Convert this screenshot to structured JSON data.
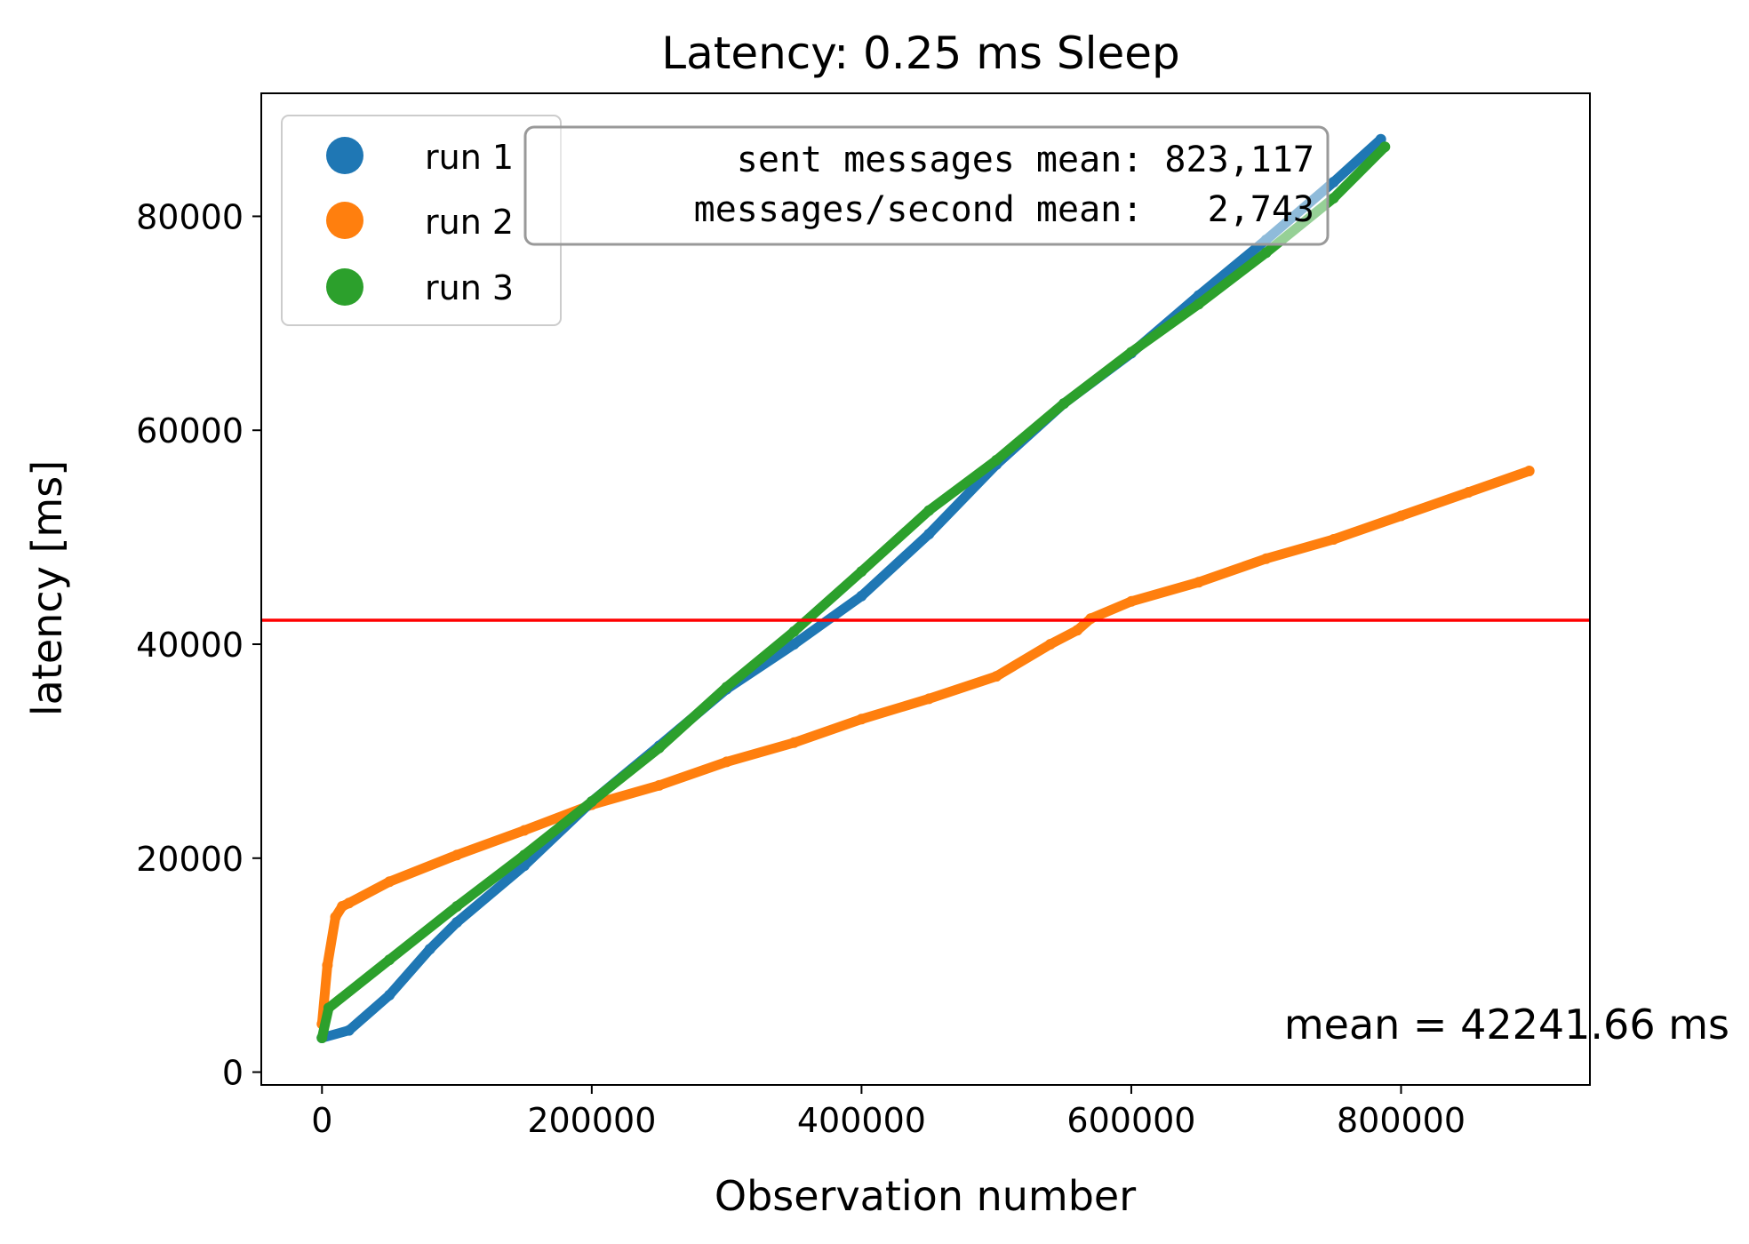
{
  "chart_data": {
    "type": "scatter",
    "title": "Latency: 0.25 ms Sleep",
    "xlabel": "Observation number",
    "ylabel": "latency [ms]",
    "xlim": [
      -45000,
      940000
    ],
    "ylim": [
      -1200,
      91500
    ],
    "x_ticks": [
      0,
      200000,
      400000,
      600000,
      800000
    ],
    "y_ticks": [
      0,
      20000,
      40000,
      60000,
      80000
    ],
    "x_tick_labels": [
      "0",
      "200000",
      "400000",
      "600000",
      "800000"
    ],
    "y_tick_labels": [
      "0",
      "20000",
      "40000",
      "60000",
      "80000"
    ],
    "grid": false,
    "legend_position": "upper-left",
    "series": [
      {
        "name": "run 1",
        "color": "#1f77b4",
        "x": [
          0,
          20000,
          50000,
          80000,
          100000,
          150000,
          200000,
          250000,
          300000,
          350000,
          400000,
          450000,
          500000,
          550000,
          600000,
          650000,
          700000,
          750000,
          785000
        ],
        "y": [
          3200,
          3900,
          7200,
          11500,
          14000,
          19300,
          25300,
          30500,
          35800,
          40000,
          44500,
          50300,
          56800,
          62500,
          67200,
          72600,
          77800,
          83200,
          87200
        ]
      },
      {
        "name": "run 2",
        "color": "#ff7f0e",
        "x": [
          0,
          4000,
          10000,
          15000,
          20000,
          50000,
          100000,
          150000,
          200000,
          250000,
          300000,
          350000,
          400000,
          450000,
          500000,
          540000,
          560000,
          570000,
          600000,
          650000,
          700000,
          750000,
          800000,
          850000,
          895000
        ],
        "y": [
          4500,
          10000,
          14500,
          15500,
          15800,
          17800,
          20300,
          22600,
          25000,
          26800,
          29000,
          30800,
          33000,
          34900,
          37000,
          40000,
          41300,
          42400,
          44000,
          45800,
          48000,
          49800,
          52000,
          54200,
          56200
        ]
      },
      {
        "name": "run 3",
        "color": "#2ca02c",
        "x": [
          0,
          5000,
          50000,
          100000,
          150000,
          200000,
          250000,
          300000,
          350000,
          400000,
          450000,
          500000,
          550000,
          600000,
          650000,
          700000,
          750000,
          788000
        ],
        "y": [
          3200,
          6000,
          10500,
          15500,
          20300,
          25300,
          30300,
          36000,
          41200,
          46800,
          52500,
          57200,
          62500,
          67300,
          71800,
          76600,
          81700,
          86500
        ]
      }
    ],
    "mean_line": {
      "y": 42241.66,
      "color": "#ff0000"
    },
    "annotations": {
      "stats_line_1": " sent messages mean: 823,117",
      "stats_line_2": "messages/second mean:   2,743",
      "mean_text": "mean = 42241.66 ms"
    }
  }
}
